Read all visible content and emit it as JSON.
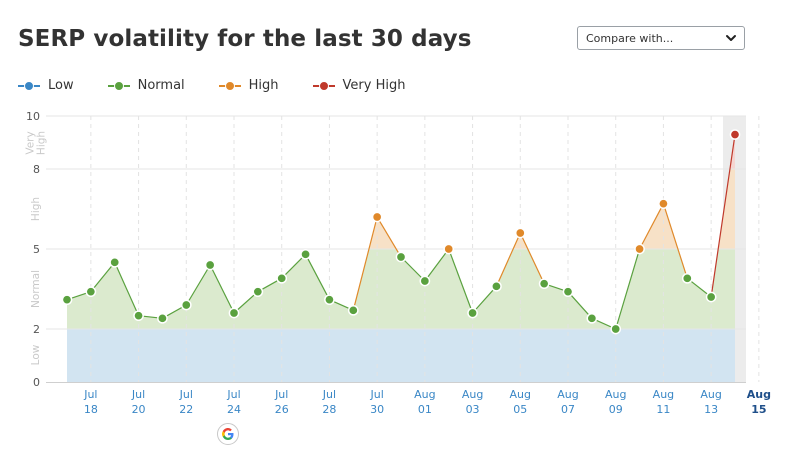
{
  "header": {
    "title": "SERP volatility for the last 30 days",
    "compare_placeholder": "Compare with..."
  },
  "legend": [
    {
      "label": "Low",
      "color": "#3a87c6"
    },
    {
      "label": "Normal",
      "color": "#5aa13f"
    },
    {
      "label": "High",
      "color": "#e0892a"
    },
    {
      "label": "Very High",
      "color": "#c0392b"
    }
  ],
  "chart_data": {
    "type": "line",
    "ylim": [
      0,
      10
    ],
    "y_ticks": [
      0,
      2,
      5,
      8,
      10
    ],
    "bands": [
      {
        "label": "Low",
        "from": 0,
        "to": 2,
        "color": "#d2e4f1"
      },
      {
        "label": "Normal",
        "from": 2,
        "to": 5,
        "color": "#dbeace"
      },
      {
        "label": "High",
        "from": 5,
        "to": 8,
        "color": "#f7e1c7"
      },
      {
        "label": "Very High",
        "from": 8,
        "to": 10,
        "color": "#f5d6d2"
      }
    ],
    "x_labels": [
      {
        "month": "Jul",
        "day": "18"
      },
      {
        "month": "Jul",
        "day": "20"
      },
      {
        "month": "Jul",
        "day": "22"
      },
      {
        "month": "Jul",
        "day": "24"
      },
      {
        "month": "Jul",
        "day": "26"
      },
      {
        "month": "Jul",
        "day": "28"
      },
      {
        "month": "Jul",
        "day": "30"
      },
      {
        "month": "Aug",
        "day": "01"
      },
      {
        "month": "Aug",
        "day": "03"
      },
      {
        "month": "Aug",
        "day": "05"
      },
      {
        "month": "Aug",
        "day": "07"
      },
      {
        "month": "Aug",
        "day": "09"
      },
      {
        "month": "Aug",
        "day": "11"
      },
      {
        "month": "Aug",
        "day": "13"
      },
      {
        "month": "Aug",
        "day": "15"
      }
    ],
    "series": [
      {
        "values": [
          3.1,
          3.4,
          4.5,
          2.5,
          2.4,
          2.9,
          4.4,
          2.6,
          3.4,
          3.9,
          4.8,
          3.1,
          2.7,
          6.2,
          4.7,
          3.8,
          5.0,
          2.6,
          3.6,
          5.6,
          3.7,
          3.4,
          2.4,
          2.0,
          5.0,
          6.7,
          3.9,
          3.2,
          9.3
        ]
      }
    ],
    "highlight_last": true,
    "annotation_icon": "google-icon"
  }
}
